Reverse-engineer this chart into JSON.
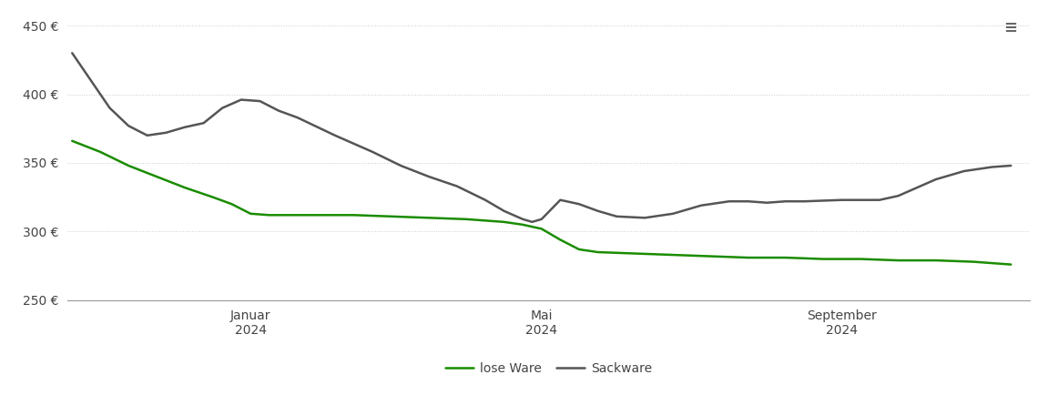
{
  "background_color": "#ffffff",
  "grid_color": "#cccccc",
  "ylim": [
    250,
    460
  ],
  "yticks": [
    250,
    300,
    350,
    400,
    450
  ],
  "legend_labels": [
    "lose Ware",
    "Sackware"
  ],
  "legend_colors": [
    "#1a8c00",
    "#555555"
  ],
  "lose_ware": {
    "x": [
      0,
      0.03,
      0.06,
      0.09,
      0.12,
      0.15,
      0.17,
      0.19,
      0.21,
      0.23,
      0.26,
      0.3,
      0.34,
      0.38,
      0.42,
      0.46,
      0.48,
      0.5,
      0.52,
      0.54,
      0.56,
      0.6,
      0.64,
      0.68,
      0.72,
      0.76,
      0.8,
      0.84,
      0.88,
      0.92,
      0.96,
      1.0
    ],
    "y": [
      366,
      358,
      348,
      340,
      332,
      325,
      320,
      313,
      312,
      312,
      312,
      312,
      311,
      310,
      309,
      307,
      305,
      302,
      294,
      287,
      285,
      284,
      283,
      282,
      281,
      281,
      280,
      280,
      279,
      279,
      278,
      276
    ]
  },
  "sackware": {
    "x": [
      0,
      0.02,
      0.04,
      0.06,
      0.08,
      0.1,
      0.12,
      0.14,
      0.16,
      0.18,
      0.2,
      0.22,
      0.24,
      0.28,
      0.32,
      0.35,
      0.38,
      0.41,
      0.44,
      0.46,
      0.48,
      0.49,
      0.5,
      0.52,
      0.54,
      0.56,
      0.58,
      0.61,
      0.64,
      0.67,
      0.7,
      0.72,
      0.74,
      0.76,
      0.78,
      0.82,
      0.86,
      0.88,
      0.9,
      0.92,
      0.95,
      0.98,
      1.0
    ],
    "y": [
      430,
      410,
      390,
      377,
      370,
      372,
      376,
      379,
      390,
      396,
      395,
      388,
      383,
      370,
      358,
      348,
      340,
      333,
      323,
      315,
      309,
      307,
      309,
      323,
      320,
      315,
      311,
      310,
      313,
      319,
      322,
      322,
      321,
      322,
      322,
      323,
      323,
      326,
      332,
      338,
      344,
      347,
      348
    ]
  },
  "x_tick_positions": [
    0.19,
    0.5,
    0.82
  ],
  "x_tick_labels": [
    "Januar\n2024",
    "Mai\n2024",
    "September\n2024"
  ],
  "menu_icon_color": "#666666"
}
